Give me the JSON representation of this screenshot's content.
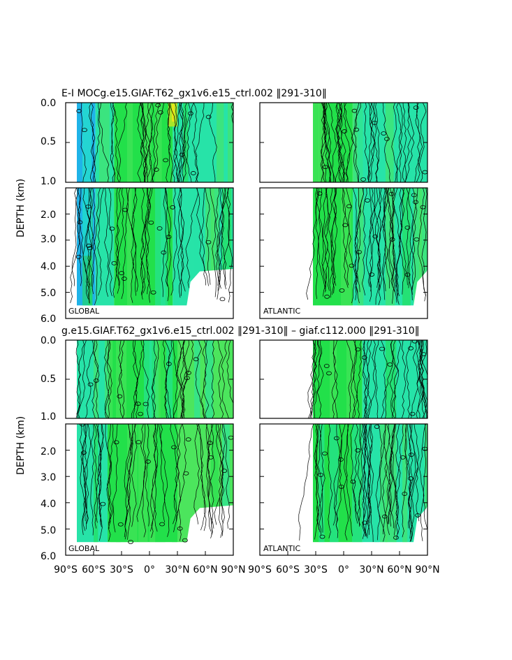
{
  "titles": {
    "top": "E-I MOCg.e15.GIAF.T62_gx1v6.e15_ctrl.002 ‖291-310‖",
    "bottom": "g.e15.GIAF.T62_gx1v6.e15_ctrl.002 ‖291-310‖ – giaf.c112.000 ‖291-310‖"
  },
  "axis": {
    "ylabel": "DEPTH (km)",
    "upper_ticks": [
      "0.0",
      "0.5",
      "1.0"
    ],
    "lower_ticks": [
      "2.0",
      "3.0",
      "4.0",
      "5.0",
      "6.0"
    ],
    "xticks": [
      "90°S",
      "60°S",
      "30°S",
      "0°",
      "30°N",
      "60°N",
      "90°N"
    ]
  },
  "panel_labels": {
    "global": "GLOBAL",
    "atlantic": "ATLANTIC"
  },
  "colors": {
    "green": "#22e04a",
    "light_green": "#4ce55d",
    "teal": "#27e3a8",
    "cyan": "#1fd6e0",
    "blue": "#1fb3e8",
    "yellow_green": "#a8e62a",
    "yellow": "#e6e61a",
    "contour": "#000000"
  },
  "chart_data": [
    {
      "type": "heatmap",
      "title": "E-I MOCg.e15.GIAF.T62_gx1v6.e15_ctrl.002 ‖291-310‖",
      "region": "GLOBAL",
      "ylabel": "DEPTH (km)",
      "xlim": [
        -90,
        90
      ],
      "ylim": [
        6.0,
        0.0
      ],
      "field": "depth-latitude section, dominant fill by latitude band",
      "bands": [
        {
          "lat_from": -78,
          "lat_to": -58,
          "fill": "blue"
        },
        {
          "lat_from": -58,
          "lat_to": -38,
          "fill": "teal"
        },
        {
          "lat_from": -38,
          "lat_to": 25,
          "fill": "green"
        },
        {
          "lat_from": 25,
          "lat_to": 90,
          "fill": "teal"
        }
      ],
      "ocean_floor_depth_km": 5.5
    },
    {
      "type": "heatmap",
      "region": "ATLANTIC",
      "ylabel": "DEPTH (km)",
      "xlim": [
        -90,
        90
      ],
      "ylim": [
        6.0,
        0.0
      ],
      "bands": [
        {
          "lat_from": -33,
          "lat_to": 10,
          "fill": "green"
        },
        {
          "lat_from": 10,
          "lat_to": 90,
          "fill": "teal"
        }
      ],
      "ocean_floor_depth_km": 5.5
    },
    {
      "type": "heatmap",
      "title": "g.e15.GIAF.T62_gx1v6.e15_ctrl.002 ‖291-310‖ – giaf.c112.000 ‖291-310‖",
      "region": "GLOBAL",
      "ylabel": "DEPTH (km)",
      "xlim": [
        -90,
        90
      ],
      "ylim": [
        6.0,
        0.0
      ],
      "bands": [
        {
          "lat_from": -78,
          "lat_to": -45,
          "fill": "teal"
        },
        {
          "lat_from": -45,
          "lat_to": 30,
          "fill": "green"
        },
        {
          "lat_from": 30,
          "lat_to": 90,
          "fill": "light_green"
        }
      ],
      "ocean_floor_depth_km": 5.5
    },
    {
      "type": "heatmap",
      "region": "ATLANTIC",
      "ylabel": "DEPTH (km)",
      "xlim": [
        -90,
        90
      ],
      "ylim": [
        6.0,
        0.0
      ],
      "bands": [
        {
          "lat_from": -33,
          "lat_to": 20,
          "fill": "green"
        },
        {
          "lat_from": 20,
          "lat_to": 90,
          "fill": "teal"
        }
      ],
      "ocean_floor_depth_km": 5.5
    }
  ]
}
